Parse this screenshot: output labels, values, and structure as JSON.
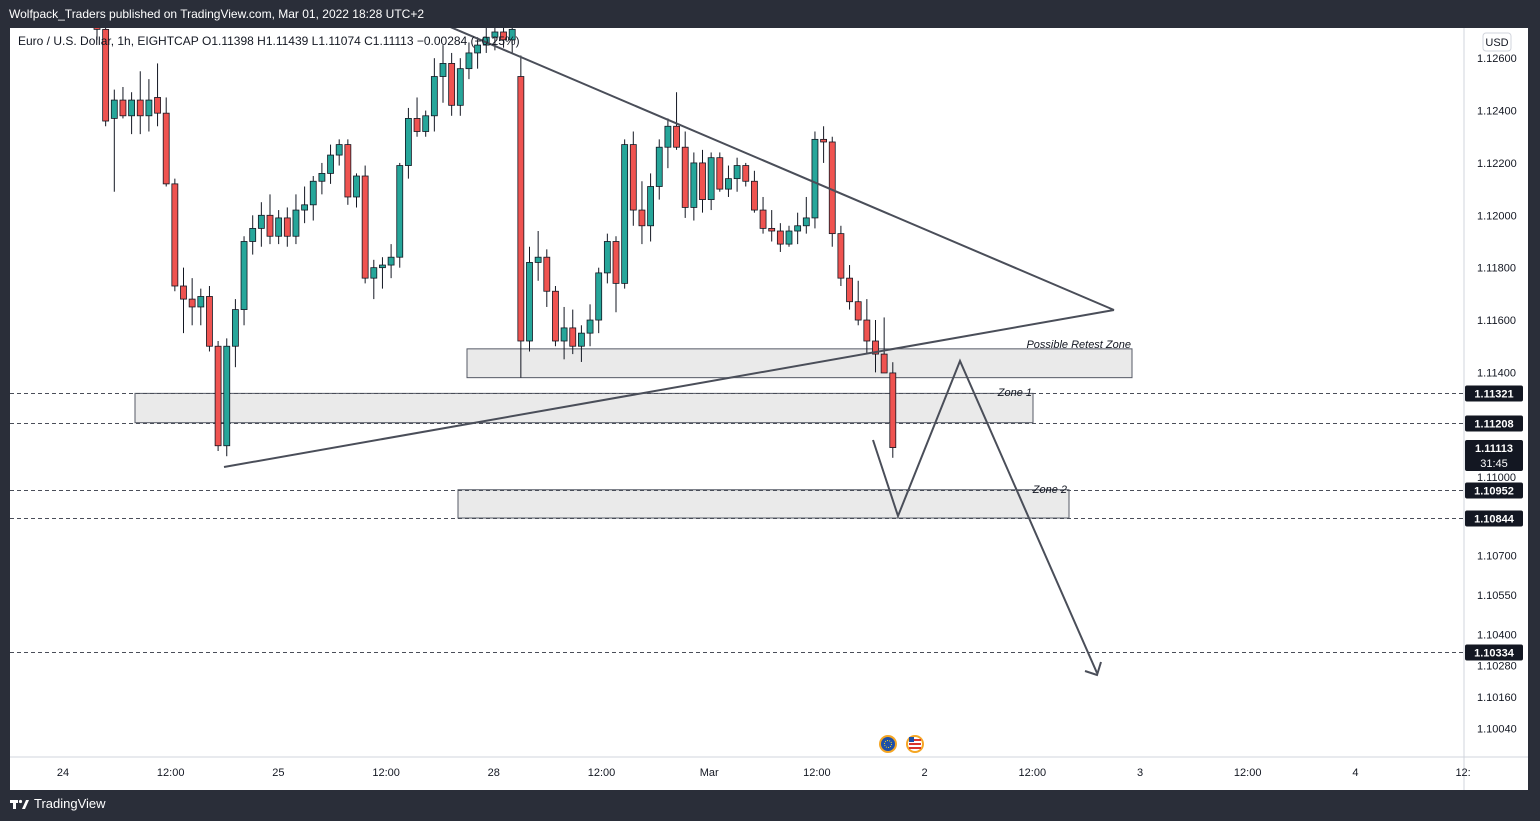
{
  "header": {
    "published_by": "Wolfpack_Traders published on TradingView.com, Mar 01, 2022 18:28 UTC+2"
  },
  "legend": {
    "symbol": "Euro / U.S. Dollar, 1h, EIGHTCAP",
    "ohlc": "O1.11398  H1.11439  L1.11074  C1.11113  −0.00284 (−0.25%)"
  },
  "currency_button": "USD",
  "footer": {
    "brand": "TradingView"
  },
  "colors": {
    "up": "#26a69a",
    "down": "#ef5350",
    "drawing": "#4a4e59",
    "zone_fill": "#eaeaea",
    "label_bg": "#131722"
  },
  "chart_data": {
    "type": "candlestick",
    "symbol": "EURUSD",
    "timeframe": "1h",
    "ylim": [
      1.0996,
      1.1274
    ],
    "x_tick_labels": [
      "24",
      "12:00",
      "25",
      "12:00",
      "28",
      "12:00",
      "Mar",
      "12:00",
      "2",
      "12:00",
      "3",
      "12:00",
      "4",
      "12:"
    ],
    "y_tick_labels": [
      "1.12600",
      "1.12400",
      "1.12200",
      "1.12000",
      "1.11800",
      "1.11600",
      "1.11400",
      "1.11000",
      "1.10700",
      "1.10550",
      "1.10400",
      "1.10280",
      "1.10160",
      "1.10040"
    ],
    "y_tick_values": [
      1.126,
      1.124,
      1.122,
      1.12,
      1.118,
      1.116,
      1.114,
      1.11,
      1.107,
      1.1055,
      1.104,
      1.1028,
      1.1016,
      1.1004
    ],
    "price_levels": [
      {
        "value": 1.11321,
        "label": "1.11321"
      },
      {
        "value": 1.11208,
        "label": "1.11208"
      },
      {
        "value": 1.10952,
        "label": "1.10952"
      },
      {
        "value": 1.10844,
        "label": "1.10844"
      },
      {
        "value": 1.10334,
        "label": "1.10334"
      }
    ],
    "current_price": {
      "value": 1.11113,
      "label": "1.11113",
      "countdown": "31:45"
    },
    "zones": [
      {
        "name": "Possible Retest Zone",
        "top": 1.1149,
        "bottom": 1.1138
      },
      {
        "name": "Zone 1",
        "top": 1.1132,
        "bottom": 1.11208
      },
      {
        "name": "Zone 2",
        "top": 1.10952,
        "bottom": 1.10844
      }
    ],
    "candles": [
      [
        1.12735,
        1.1279,
        1.1267,
        1.1271
      ],
      [
        1.1271,
        1.1275,
        1.1234,
        1.1236
      ],
      [
        1.1237,
        1.1248,
        1.1209,
        1.1244
      ],
      [
        1.1244,
        1.1249,
        1.1237,
        1.1238
      ],
      [
        1.1238,
        1.1247,
        1.1231,
        1.1244
      ],
      [
        1.1244,
        1.1255,
        1.1231,
        1.1238
      ],
      [
        1.1238,
        1.1252,
        1.1232,
        1.1244
      ],
      [
        1.1245,
        1.1258,
        1.1234,
        1.1239
      ],
      [
        1.1239,
        1.1245,
        1.1211,
        1.1212
      ],
      [
        1.1212,
        1.1214,
        1.1171,
        1.1173
      ],
      [
        1.1173,
        1.118,
        1.1155,
        1.1168
      ],
      [
        1.1168,
        1.1176,
        1.1158,
        1.1165
      ],
      [
        1.1165,
        1.1172,
        1.1158,
        1.1169
      ],
      [
        1.1169,
        1.1173,
        1.1148,
        1.115
      ],
      [
        1.115,
        1.1152,
        1.111,
        1.1112
      ],
      [
        1.1112,
        1.1153,
        1.1108,
        1.115
      ],
      [
        1.115,
        1.1168,
        1.1142,
        1.1164
      ],
      [
        1.1164,
        1.1192,
        1.1158,
        1.119
      ],
      [
        1.119,
        1.12,
        1.1185,
        1.1195
      ],
      [
        1.1195,
        1.1205,
        1.1188,
        1.12
      ],
      [
        1.12,
        1.1208,
        1.1189,
        1.1192
      ],
      [
        1.1192,
        1.1202,
        1.1189,
        1.1199
      ],
      [
        1.1199,
        1.1203,
        1.1188,
        1.1192
      ],
      [
        1.1192,
        1.1208,
        1.1189,
        1.1202
      ],
      [
        1.1202,
        1.1211,
        1.1197,
        1.1204
      ],
      [
        1.1204,
        1.1215,
        1.1198,
        1.1213
      ],
      [
        1.1213,
        1.122,
        1.1208,
        1.1216
      ],
      [
        1.1216,
        1.1227,
        1.1212,
        1.1223
      ],
      [
        1.1223,
        1.1229,
        1.1219,
        1.1227
      ],
      [
        1.1227,
        1.1229,
        1.1204,
        1.1207
      ],
      [
        1.1207,
        1.1216,
        1.1203,
        1.1215
      ],
      [
        1.1215,
        1.1219,
        1.1174,
        1.1176
      ],
      [
        1.1176,
        1.1183,
        1.1168,
        1.118
      ],
      [
        1.118,
        1.1184,
        1.1172,
        1.1181
      ],
      [
        1.1181,
        1.1189,
        1.1176,
        1.1184
      ],
      [
        1.1184,
        1.122,
        1.118,
        1.1219
      ],
      [
        1.1219,
        1.1241,
        1.1214,
        1.1237
      ],
      [
        1.1237,
        1.1245,
        1.123,
        1.1232
      ],
      [
        1.1232,
        1.124,
        1.123,
        1.1238
      ],
      [
        1.1238,
        1.126,
        1.1232,
        1.1253
      ],
      [
        1.1253,
        1.1265,
        1.1243,
        1.1258
      ],
      [
        1.1258,
        1.1262,
        1.1238,
        1.1242
      ],
      [
        1.1242,
        1.126,
        1.1238,
        1.1256
      ],
      [
        1.1256,
        1.1266,
        1.1252,
        1.1262
      ],
      [
        1.1262,
        1.1268,
        1.1256,
        1.1265
      ],
      [
        1.1265,
        1.1275,
        1.1262,
        1.1268
      ],
      [
        1.1268,
        1.1273,
        1.1263,
        1.127
      ],
      [
        1.127,
        1.1276,
        1.1264,
        1.1267
      ],
      [
        1.1267,
        1.1272,
        1.1262,
        1.1271
      ],
      [
        1.1253,
        1.1261,
        1.1138,
        1.1152
      ],
      [
        1.1152,
        1.1188,
        1.1148,
        1.1182
      ],
      [
        1.1182,
        1.1194,
        1.1175,
        1.1184
      ],
      [
        1.1184,
        1.1187,
        1.1165,
        1.1171
      ],
      [
        1.1171,
        1.1173,
        1.115,
        1.1152
      ],
      [
        1.1152,
        1.1165,
        1.1145,
        1.1157
      ],
      [
        1.1157,
        1.1164,
        1.1147,
        1.115
      ],
      [
        1.115,
        1.1158,
        1.1144,
        1.1155
      ],
      [
        1.1155,
        1.1166,
        1.115,
        1.116
      ],
      [
        1.116,
        1.118,
        1.1155,
        1.1178
      ],
      [
        1.1178,
        1.1193,
        1.1174,
        1.119
      ],
      [
        1.119,
        1.1192,
        1.1163,
        1.1174
      ],
      [
        1.1174,
        1.1229,
        1.1172,
        1.1227
      ],
      [
        1.1227,
        1.1232,
        1.1196,
        1.1202
      ],
      [
        1.1202,
        1.1213,
        1.1189,
        1.1196
      ],
      [
        1.1196,
        1.1216,
        1.119,
        1.1211
      ],
      [
        1.1211,
        1.1229,
        1.1206,
        1.1226
      ],
      [
        1.1226,
        1.1237,
        1.1218,
        1.1234
      ],
      [
        1.1234,
        1.1247,
        1.1225,
        1.1226
      ],
      [
        1.1226,
        1.1232,
        1.1199,
        1.1203
      ],
      [
        1.1203,
        1.1224,
        1.1198,
        1.122
      ],
      [
        1.122,
        1.1225,
        1.1201,
        1.1206
      ],
      [
        1.1206,
        1.1224,
        1.1202,
        1.1222
      ],
      [
        1.1222,
        1.1224,
        1.1209,
        1.121
      ],
      [
        1.121,
        1.1219,
        1.1207,
        1.1214
      ],
      [
        1.1214,
        1.1222,
        1.1209,
        1.1219
      ],
      [
        1.1219,
        1.122,
        1.1211,
        1.1213
      ],
      [
        1.1213,
        1.1217,
        1.1201,
        1.1202
      ],
      [
        1.1202,
        1.1207,
        1.1193,
        1.1195
      ],
      [
        1.1195,
        1.1202,
        1.119,
        1.1194
      ],
      [
        1.1194,
        1.1197,
        1.1186,
        1.1189
      ],
      [
        1.1189,
        1.1196,
        1.1188,
        1.1194
      ],
      [
        1.1194,
        1.1201,
        1.1189,
        1.1196
      ],
      [
        1.1196,
        1.1207,
        1.1193,
        1.1199
      ],
      [
        1.1199,
        1.1232,
        1.1195,
        1.1229
      ],
      [
        1.1229,
        1.1234,
        1.122,
        1.1228
      ],
      [
        1.1228,
        1.123,
        1.1188,
        1.1193
      ],
      [
        1.1193,
        1.1196,
        1.1173,
        1.1176
      ],
      [
        1.1176,
        1.1181,
        1.1164,
        1.1167
      ],
      [
        1.1167,
        1.1175,
        1.1158,
        1.116
      ],
      [
        1.116,
        1.1168,
        1.1147,
        1.1152
      ],
      [
        1.1152,
        1.116,
        1.114,
        1.1147
      ],
      [
        1.1147,
        1.1161,
        1.114,
        1.11398
      ],
      [
        1.11398,
        1.11439,
        1.11074,
        1.11113
      ]
    ],
    "annotations": [
      "Possible Retest Zone",
      "Zone 1",
      "Zone 2"
    ]
  }
}
